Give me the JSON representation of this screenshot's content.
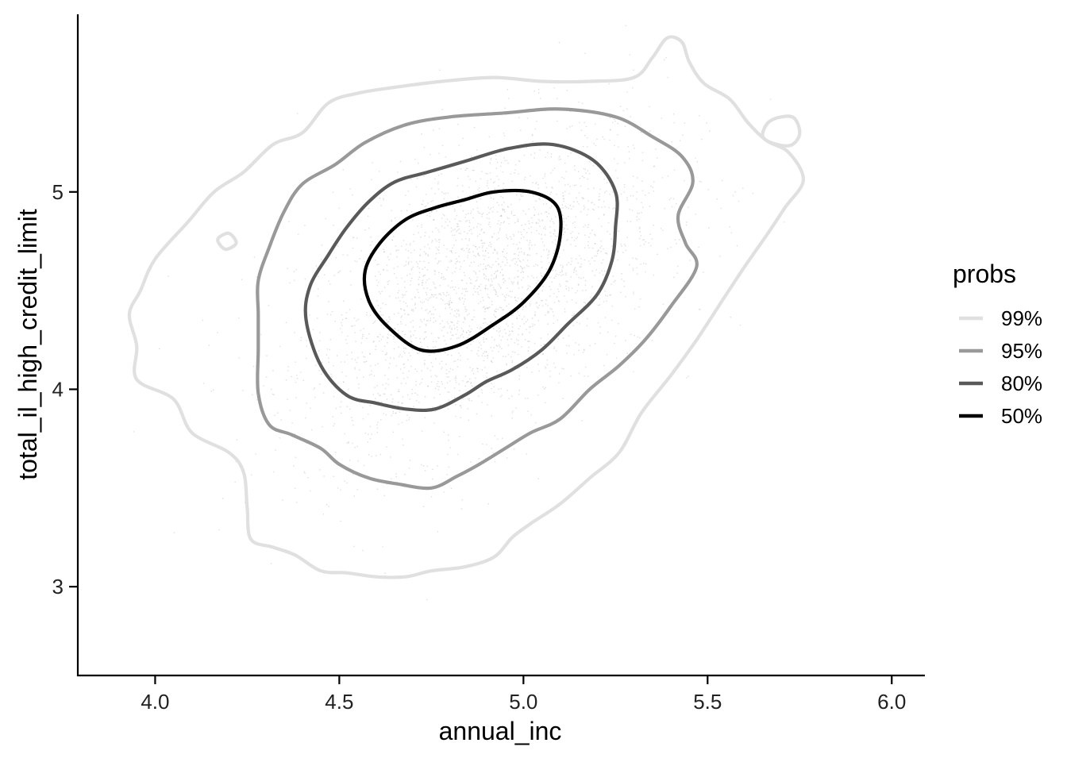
{
  "chart_data": {
    "type": "scatter",
    "title": "",
    "xlabel": "annual_inc",
    "ylabel": "total_il_high_credit_limit",
    "xlim": [
      3.79,
      6.09
    ],
    "ylim": [
      2.55,
      5.9
    ],
    "x_ticks": [
      4.0,
      4.5,
      5.0,
      5.5,
      6.0
    ],
    "x_tick_labels": [
      "4.0",
      "4.5",
      "5.0",
      "5.5",
      "6.0"
    ],
    "y_ticks": [
      3,
      4,
      5
    ],
    "y_tick_labels": [
      "3",
      "4",
      "5"
    ],
    "grid": false,
    "legend": {
      "title": "probs",
      "position": "right",
      "entries": [
        "99%",
        "95%",
        "80%",
        "50%"
      ]
    },
    "points": {
      "description": "dense faint scatter of observations",
      "center": [
        4.88,
        4.52
      ],
      "spread": [
        0.25,
        0.42
      ],
      "correlation": 0.5,
      "color": "#b8b8b8"
    },
    "contours": [
      {
        "level": "99%",
        "color": "#e0e0e0",
        "points": [
          [
            4.05,
            3.95
          ],
          [
            4.1,
            3.78
          ],
          [
            4.2,
            3.68
          ],
          [
            4.24,
            3.58
          ],
          [
            4.25,
            3.4
          ],
          [
            4.26,
            3.24
          ],
          [
            4.32,
            3.2
          ],
          [
            4.38,
            3.16
          ],
          [
            4.45,
            3.08
          ],
          [
            4.52,
            3.07
          ],
          [
            4.6,
            3.05
          ],
          [
            4.68,
            3.05
          ],
          [
            4.75,
            3.08
          ],
          [
            4.84,
            3.1
          ],
          [
            4.92,
            3.15
          ],
          [
            4.97,
            3.25
          ],
          [
            5.02,
            3.32
          ],
          [
            5.1,
            3.42
          ],
          [
            5.18,
            3.55
          ],
          [
            5.26,
            3.68
          ],
          [
            5.32,
            3.88
          ],
          [
            5.4,
            4.07
          ],
          [
            5.47,
            4.25
          ],
          [
            5.54,
            4.45
          ],
          [
            5.6,
            4.62
          ],
          [
            5.66,
            4.78
          ],
          [
            5.71,
            4.92
          ],
          [
            5.76,
            5.06
          ],
          [
            5.72,
            5.2
          ],
          [
            5.66,
            5.26
          ],
          [
            5.61,
            5.35
          ],
          [
            5.56,
            5.47
          ],
          [
            5.49,
            5.55
          ],
          [
            5.45,
            5.66
          ],
          [
            5.43,
            5.76
          ],
          [
            5.39,
            5.78
          ],
          [
            5.35,
            5.68
          ],
          [
            5.3,
            5.58
          ],
          [
            5.18,
            5.56
          ],
          [
            5.05,
            5.56
          ],
          [
            4.92,
            5.58
          ],
          [
            4.78,
            5.56
          ],
          [
            4.65,
            5.53
          ],
          [
            4.55,
            5.5
          ],
          [
            4.47,
            5.45
          ],
          [
            4.4,
            5.3
          ],
          [
            4.32,
            5.24
          ],
          [
            4.24,
            5.1
          ],
          [
            4.16,
            5.0
          ],
          [
            4.09,
            4.85
          ],
          [
            4.0,
            4.66
          ],
          [
            3.96,
            4.5
          ],
          [
            3.93,
            4.38
          ],
          [
            3.95,
            4.22
          ],
          [
            3.95,
            4.05
          ],
          [
            4.05,
            3.95
          ]
        ]
      },
      {
        "level": "99%",
        "color": "#e0e0e0",
        "points": [
          [
            5.67,
            5.36
          ],
          [
            5.73,
            5.38
          ],
          [
            5.75,
            5.3
          ],
          [
            5.73,
            5.24
          ],
          [
            5.69,
            5.24
          ],
          [
            5.65,
            5.28
          ],
          [
            5.67,
            5.36
          ]
        ]
      },
      {
        "level": "99%",
        "color": "#e0e0e0",
        "points": [
          [
            4.17,
            4.76
          ],
          [
            4.2,
            4.79
          ],
          [
            4.22,
            4.74
          ],
          [
            4.19,
            4.71
          ],
          [
            4.17,
            4.76
          ]
        ]
      },
      {
        "level": "95%",
        "color": "#999999",
        "points": [
          [
            4.28,
            3.98
          ],
          [
            4.31,
            3.82
          ],
          [
            4.37,
            3.77
          ],
          [
            4.45,
            3.7
          ],
          [
            4.5,
            3.62
          ],
          [
            4.58,
            3.55
          ],
          [
            4.66,
            3.52
          ],
          [
            4.75,
            3.5
          ],
          [
            4.82,
            3.56
          ],
          [
            4.88,
            3.62
          ],
          [
            4.95,
            3.7
          ],
          [
            5.02,
            3.78
          ],
          [
            5.1,
            3.85
          ],
          [
            5.18,
            4.0
          ],
          [
            5.26,
            4.12
          ],
          [
            5.33,
            4.25
          ],
          [
            5.4,
            4.42
          ],
          [
            5.47,
            4.62
          ],
          [
            5.44,
            4.74
          ],
          [
            5.42,
            4.88
          ],
          [
            5.46,
            5.05
          ],
          [
            5.43,
            5.18
          ],
          [
            5.35,
            5.28
          ],
          [
            5.25,
            5.38
          ],
          [
            5.1,
            5.42
          ],
          [
            4.95,
            5.4
          ],
          [
            4.8,
            5.38
          ],
          [
            4.68,
            5.34
          ],
          [
            4.57,
            5.25
          ],
          [
            4.49,
            5.14
          ],
          [
            4.4,
            5.04
          ],
          [
            4.35,
            4.9
          ],
          [
            4.31,
            4.72
          ],
          [
            4.28,
            4.55
          ],
          [
            4.28,
            4.38
          ],
          [
            4.28,
            4.2
          ],
          [
            4.28,
            3.98
          ]
        ]
      },
      {
        "level": "80%",
        "color": "#595959",
        "points": [
          [
            4.45,
            4.12
          ],
          [
            4.52,
            3.97
          ],
          [
            4.6,
            3.93
          ],
          [
            4.68,
            3.9
          ],
          [
            4.76,
            3.9
          ],
          [
            4.84,
            3.97
          ],
          [
            4.9,
            4.04
          ],
          [
            4.97,
            4.1
          ],
          [
            5.05,
            4.2
          ],
          [
            5.12,
            4.33
          ],
          [
            5.2,
            4.48
          ],
          [
            5.24,
            4.65
          ],
          [
            5.25,
            4.82
          ],
          [
            5.25,
            5.0
          ],
          [
            5.19,
            5.16
          ],
          [
            5.08,
            5.24
          ],
          [
            4.96,
            5.22
          ],
          [
            4.85,
            5.16
          ],
          [
            4.74,
            5.1
          ],
          [
            4.65,
            5.05
          ],
          [
            4.58,
            4.95
          ],
          [
            4.52,
            4.82
          ],
          [
            4.47,
            4.68
          ],
          [
            4.42,
            4.52
          ],
          [
            4.41,
            4.35
          ],
          [
            4.45,
            4.12
          ]
        ]
      },
      {
        "level": "50%",
        "color": "#000000",
        "points": [
          [
            4.58,
            4.45
          ],
          [
            4.63,
            4.32
          ],
          [
            4.72,
            4.2
          ],
          [
            4.82,
            4.22
          ],
          [
            4.92,
            4.33
          ],
          [
            5.0,
            4.44
          ],
          [
            5.07,
            4.6
          ],
          [
            5.1,
            4.78
          ],
          [
            5.09,
            4.93
          ],
          [
            5.02,
            5.0
          ],
          [
            4.92,
            5.0
          ],
          [
            4.84,
            4.96
          ],
          [
            4.76,
            4.92
          ],
          [
            4.68,
            4.86
          ],
          [
            4.61,
            4.74
          ],
          [
            4.57,
            4.6
          ],
          [
            4.58,
            4.45
          ]
        ]
      }
    ]
  }
}
